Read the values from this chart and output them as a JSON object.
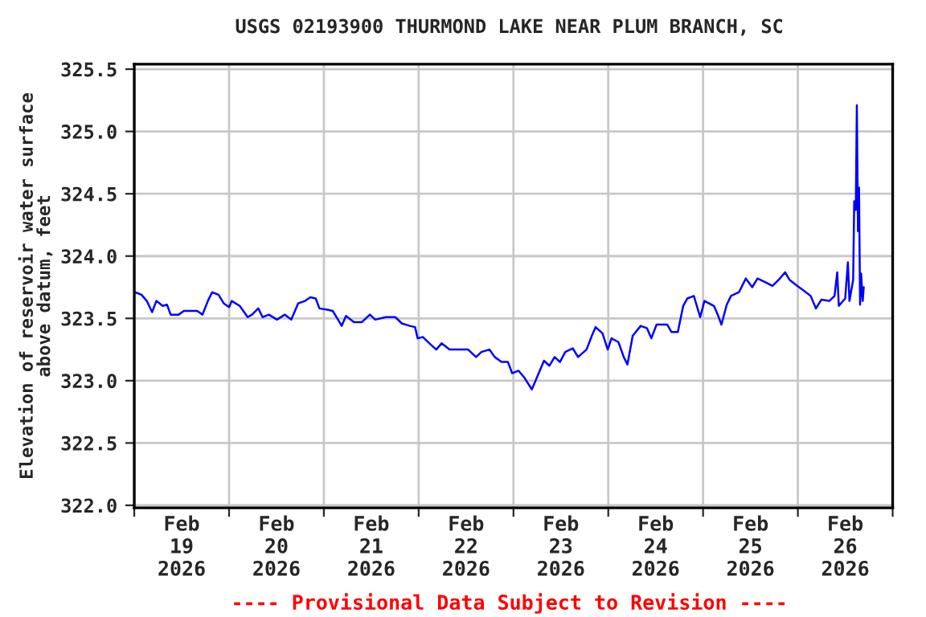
{
  "chart_data": {
    "type": "line",
    "title": "USGS 02193900 THURMOND LAKE NEAR PLUM BRANCH, SC",
    "ylabel": "Elevation of reservoir water surface\nabove datum, feet",
    "annotations": [
      "---- Provisional Data Subject to Revision ----"
    ],
    "xlim": [
      "2026-02-19",
      "2026-02-27"
    ],
    "ylim": [
      321.98,
      325.54
    ],
    "xticks": [
      {
        "value": "2026-02-19",
        "label": null
      },
      {
        "value": "2026-02-19T12:00",
        "label": "Feb\n19\n2026"
      },
      {
        "value": "2026-02-20",
        "label": null
      },
      {
        "value": "2026-02-20T12:00",
        "label": "Feb\n20\n2026"
      },
      {
        "value": "2026-02-21",
        "label": null
      },
      {
        "value": "2026-02-21T12:00",
        "label": "Feb\n21\n2026"
      },
      {
        "value": "2026-02-22",
        "label": null
      },
      {
        "value": "2026-02-22T12:00",
        "label": "Feb\n22\n2026"
      },
      {
        "value": "2026-02-23",
        "label": null
      },
      {
        "value": "2026-02-23T12:00",
        "label": "Feb\n23\n2026"
      },
      {
        "value": "2026-02-24",
        "label": null
      },
      {
        "value": "2026-02-24T12:00",
        "label": "Feb\n24\n2026"
      },
      {
        "value": "2026-02-25",
        "label": null
      },
      {
        "value": "2026-02-25T12:00",
        "label": "Feb\n25\n2026"
      },
      {
        "value": "2026-02-26",
        "label": null
      },
      {
        "value": "2026-02-26T12:00",
        "label": "Feb\n26\n2026"
      },
      {
        "value": "2026-02-27",
        "label": null
      }
    ],
    "yticks": [
      {
        "value": 322,
        "label": "322.0"
      },
      {
        "value": 322.5,
        "label": "322.5"
      },
      {
        "value": 323,
        "label": "323.0"
      },
      {
        "value": 323.5,
        "label": "323.5"
      },
      {
        "value": 324,
        "label": "324.0"
      },
      {
        "value": 324.5,
        "label": "324.5"
      },
      {
        "value": 325,
        "label": "325.0"
      },
      {
        "value": 325.5,
        "label": "325.5"
      }
    ],
    "grid": true,
    "legend": false,
    "line_style": "solid",
    "marker": "none",
    "series": [
      {
        "color": "#0000ff",
        "x": [
          "2026-02-19T00:12",
          "2026-02-19T01:50",
          "2026-02-19T03:10",
          "2026-02-19T04:31",
          "2026-02-19T05:35",
          "2026-02-19T07:13",
          "2026-02-19T08:17",
          "2026-02-19T09:13",
          "2026-02-19T11:14",
          "2026-02-19T12:35",
          "2026-02-19T15:56",
          "2026-02-19T17:17",
          "2026-02-19T18:38",
          "2026-02-19T19:43",
          "2026-02-19T21:19",
          "2026-02-19T22:40",
          "2026-02-20T00:01",
          "2026-02-20T00:41",
          "2026-02-20T02:42",
          "2026-02-20T04:43",
          "2026-02-20T05:48",
          "2026-02-20T07:24",
          "2026-02-20T08:29",
          "2026-02-20T10:06",
          "2026-02-20T12:07",
          "2026-02-20T14:08",
          "2026-02-20T15:45",
          "2026-02-20T17:29",
          "2026-02-20T19:14",
          "2026-02-20T20:35",
          "2026-02-20T21:56",
          "2026-02-20T22:52",
          "2026-02-21T00:53",
          "2026-02-21T02:14",
          "2026-02-21T03:35",
          "2026-02-21T04:31",
          "2026-02-21T05:36",
          "2026-02-21T07:37",
          "2026-02-21T09:38",
          "2026-02-21T11:39",
          "2026-02-21T13:00",
          "2026-02-21T15:41",
          "2026-02-21T18:06",
          "2026-02-21T19:43",
          "2026-02-21T21:44",
          "2026-02-21T23:05",
          "2026-02-21T23:45",
          "2026-02-22T01:05",
          "2026-02-22T02:43",
          "2026-02-22T04:27",
          "2026-02-22T05:48",
          "2026-02-22T07:49",
          "2026-02-22T10:31",
          "2026-02-22T12:31",
          "2026-02-22T14:32",
          "2026-02-22T15:53",
          "2026-02-22T17:54",
          "2026-02-22T19:15",
          "2026-02-22T20:59",
          "2026-02-22T22:36",
          "2026-02-22T23:40",
          "2026-02-23T01:17",
          "2026-02-23T02:38",
          "2026-02-23T04:39",
          "2026-02-23T05:59",
          "2026-02-23T07:44",
          "2026-02-23T09:05",
          "2026-02-23T10:26",
          "2026-02-23T11:46",
          "2026-02-23T13:07",
          "2026-02-23T15:00",
          "2026-02-23T16:21",
          "2026-02-23T18:30",
          "2026-02-23T19:50",
          "2026-02-23T20:47",
          "2026-02-23T22:32",
          "2026-02-23T23:52",
          "2026-02-24T00:49",
          "2026-02-24T02:34",
          "2026-02-24T03:55",
          "2026-02-24T04:51",
          "2026-02-24T06:11",
          "2026-02-24T08:13",
          "2026-02-24T09:49",
          "2026-02-24T10:54",
          "2026-02-24T12:14",
          "2026-02-24T14:56",
          "2026-02-24T16:01",
          "2026-02-24T17:37",
          "2026-02-24T18:58",
          "2026-02-24T20:02",
          "2026-02-24T21:40",
          "2026-02-24T23:16",
          "2026-02-25T00:21",
          "2026-02-25T02:46",
          "2026-02-25T03:43",
          "2026-02-25T04:39",
          "2026-02-25T06:00",
          "2026-02-25T07:04",
          "2026-02-25T09:05",
          "2026-02-25T10:50",
          "2026-02-25T12:27",
          "2026-02-25T13:47",
          "2026-02-25T15:49",
          "2026-02-25T17:34",
          "2026-02-25T19:10",
          "2026-02-25T20:47",
          "2026-02-25T21:52",
          "2026-02-25T23:53",
          "2026-02-26T01:38",
          "2026-02-26T03:14",
          "2026-02-26T04:35",
          "2026-02-26T05:56",
          "2026-02-26T07:57",
          "2026-02-26T09:17",
          "2026-02-26T09:58",
          "2026-02-26T10:22",
          "2026-02-26T11:59",
          "2026-02-26T12:40",
          "2026-02-26T13:04",
          "2026-02-26T14:00",
          "2026-02-26T14:16",
          "2026-02-26T14:40",
          "2026-02-26T14:56",
          "2026-02-26T15:13",
          "2026-02-26T15:29",
          "2026-02-26T15:45",
          "2026-02-26T16:01",
          "2026-02-26T16:25",
          "2026-02-26T16:41"
        ],
        "values": [
          323.71,
          323.69,
          323.64,
          323.55,
          323.64,
          323.6,
          323.61,
          323.53,
          323.53,
          323.56,
          323.56,
          323.53,
          323.64,
          323.71,
          323.69,
          323.62,
          323.59,
          323.64,
          323.6,
          323.51,
          323.53,
          323.58,
          323.51,
          323.53,
          323.49,
          323.53,
          323.49,
          323.62,
          323.64,
          323.67,
          323.66,
          323.58,
          323.57,
          323.56,
          323.49,
          323.44,
          323.52,
          323.47,
          323.47,
          323.53,
          323.49,
          323.51,
          323.51,
          323.46,
          323.44,
          323.43,
          323.34,
          323.35,
          323.3,
          323.25,
          323.3,
          323.25,
          323.25,
          323.25,
          323.19,
          323.23,
          323.25,
          323.19,
          323.15,
          323.15,
          323.06,
          323.08,
          323.03,
          322.93,
          323.03,
          323.16,
          323.12,
          323.19,
          323.15,
          323.23,
          323.26,
          323.19,
          323.25,
          323.36,
          323.43,
          323.38,
          323.25,
          323.34,
          323.31,
          323.19,
          323.13,
          323.36,
          323.44,
          323.42,
          323.34,
          323.45,
          323.45,
          323.39,
          323.39,
          323.6,
          323.66,
          323.68,
          323.51,
          323.64,
          323.6,
          323.53,
          323.45,
          323.61,
          323.68,
          323.71,
          323.82,
          323.75,
          323.82,
          323.79,
          323.76,
          323.81,
          323.87,
          323.81,
          323.76,
          323.72,
          323.68,
          323.58,
          323.65,
          323.64,
          323.68,
          323.87,
          323.6,
          323.66,
          323.95,
          323.64,
          323.81,
          324.44,
          324.37,
          325.21,
          324.2,
          324.55,
          323.61,
          323.86,
          323.64,
          323.75
        ]
      }
    ]
  }
}
